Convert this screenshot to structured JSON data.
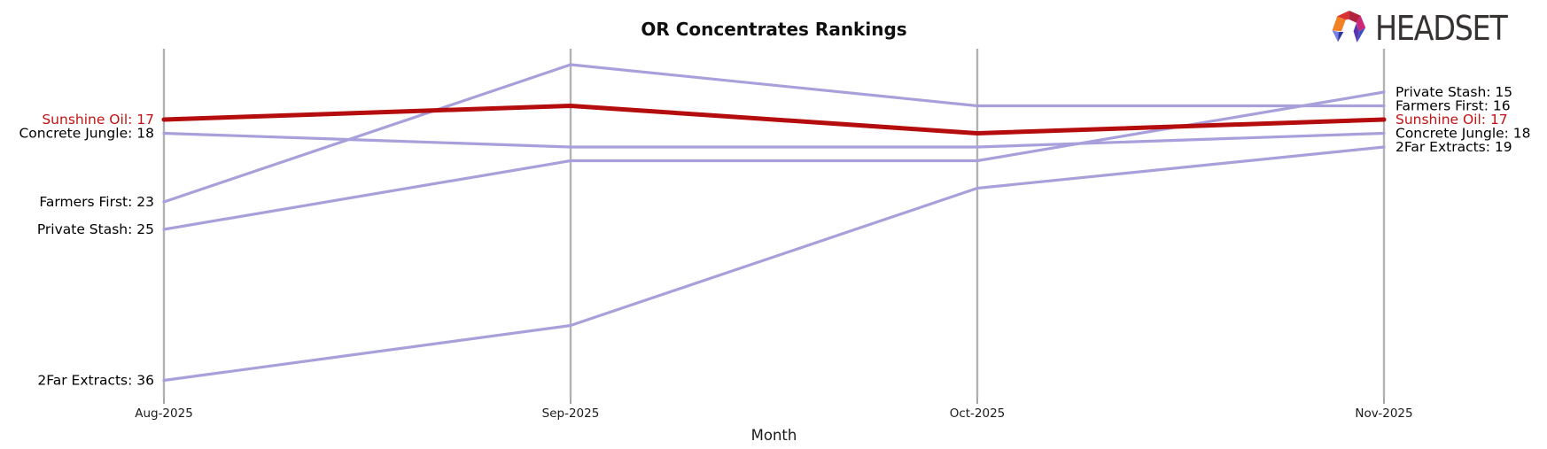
{
  "header": {
    "title": "OR Concentrates Rankings"
  },
  "logo": {
    "text": "HEADSET",
    "icon": "headset-faceted-arch"
  },
  "x_axis": {
    "label": "Month"
  },
  "chart_data": {
    "type": "line",
    "subtype": "bump-ranking-chart",
    "title": "OR Concentrates Rankings",
    "xlabel": "Month",
    "ylabel": "",
    "categories": [
      "Aug-2025",
      "Sep-2025",
      "Oct-2025",
      "Nov-2025"
    ],
    "value_semantics": "market ranking; lower number = better rank, plotted higher",
    "ylim": [
      12,
      38
    ],
    "y_inverted": true,
    "grid": "vertical-only",
    "legend_position": "inline line-end labels (left and right of plot)",
    "colors": {
      "highlight_line": "#b50d0d",
      "default_line": "#a7a0da",
      "gridline": "#b2b2b2",
      "label_text": "#000000"
    },
    "series": [
      {
        "name": "Concrete Jungle",
        "values": [
          18,
          19,
          19,
          18
        ],
        "highlighted": false
      },
      {
        "name": "Farmers First",
        "values": [
          23,
          13,
          16,
          16
        ],
        "highlighted": false
      },
      {
        "name": "Private Stash",
        "values": [
          25,
          20,
          20,
          15
        ],
        "highlighted": false
      },
      {
        "name": "2Far Extracts",
        "values": [
          36,
          32,
          22,
          19
        ],
        "highlighted": false
      },
      {
        "name": "Sunshine Oil",
        "values": [
          17,
          16,
          18,
          17
        ],
        "highlighted": true
      }
    ],
    "left_edge_labels": [
      "Sunshine Oil: 17",
      "Concrete Jungle: 18",
      "Farmers First: 23",
      "Private Stash: 25",
      "2Far Extracts: 36"
    ],
    "right_edge_labels": [
      "Private Stash: 15",
      "Farmers First: 16",
      "Sunshine Oil: 17",
      "Concrete Jungle: 18",
      "2Far Extracts: 19"
    ]
  }
}
